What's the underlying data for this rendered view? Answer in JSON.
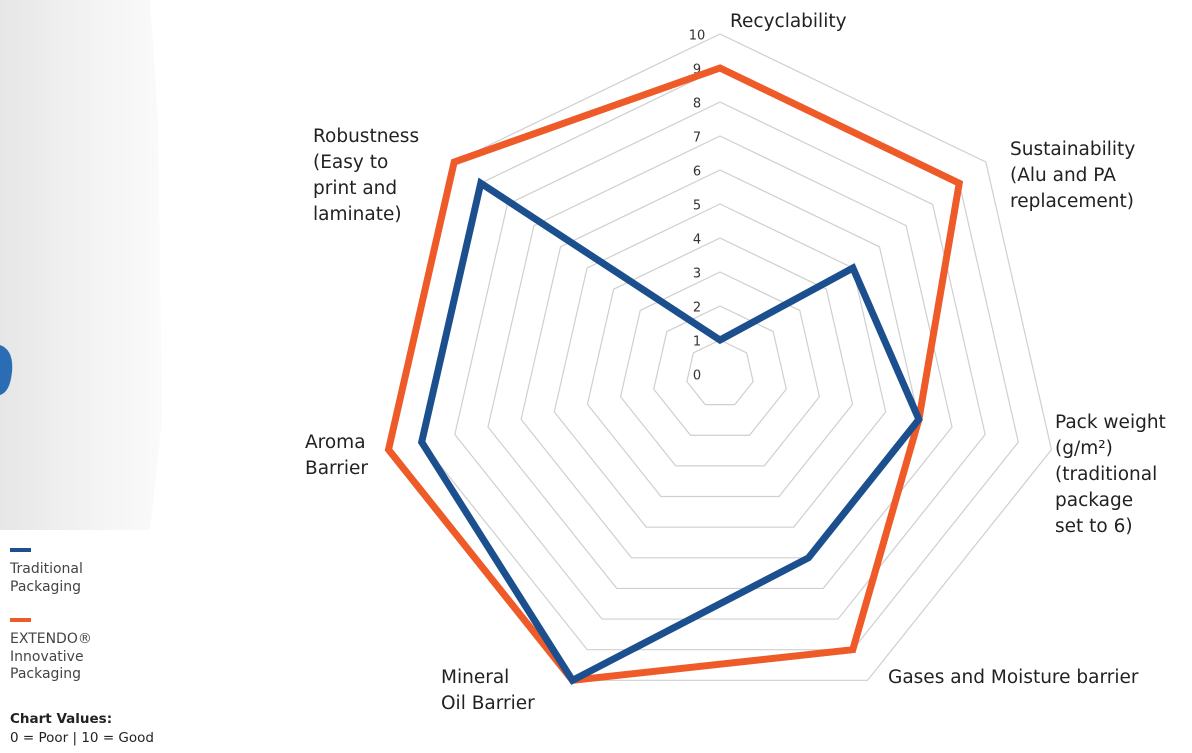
{
  "chart_data": {
    "type": "radar",
    "categories": [
      [
        "Recyclability"
      ],
      [
        "Sustainability",
        "(Alu and PA",
        "replacement)"
      ],
      [
        "Pack weight",
        "(g/m²)",
        "(traditional",
        "package",
        "set to 6)"
      ],
      [
        "Gases and Moisture barrier"
      ],
      [
        "Mineral",
        "Oil Barrier"
      ],
      [
        "Aroma",
        "Barrier"
      ],
      [
        "Robustness",
        "(Easy to",
        "print and",
        "laminate)"
      ]
    ],
    "series": [
      {
        "name": "Traditional Packaging",
        "color": "#1b4f8e",
        "values": [
          1,
          5,
          6,
          6,
          10,
          9,
          9
        ]
      },
      {
        "name": "EXTENDO® Innovative Packaging",
        "color": "#ee5a28",
        "values": [
          9,
          9,
          6,
          9,
          10,
          10,
          10
        ]
      }
    ],
    "rlim": [
      0,
      10
    ],
    "rticks": [
      0,
      1,
      2,
      3,
      4,
      5,
      6,
      7,
      8,
      9,
      10
    ],
    "grid": true,
    "note_title": "Chart Values:",
    "note_text": "0 = Poor | 10 = Good"
  }
}
